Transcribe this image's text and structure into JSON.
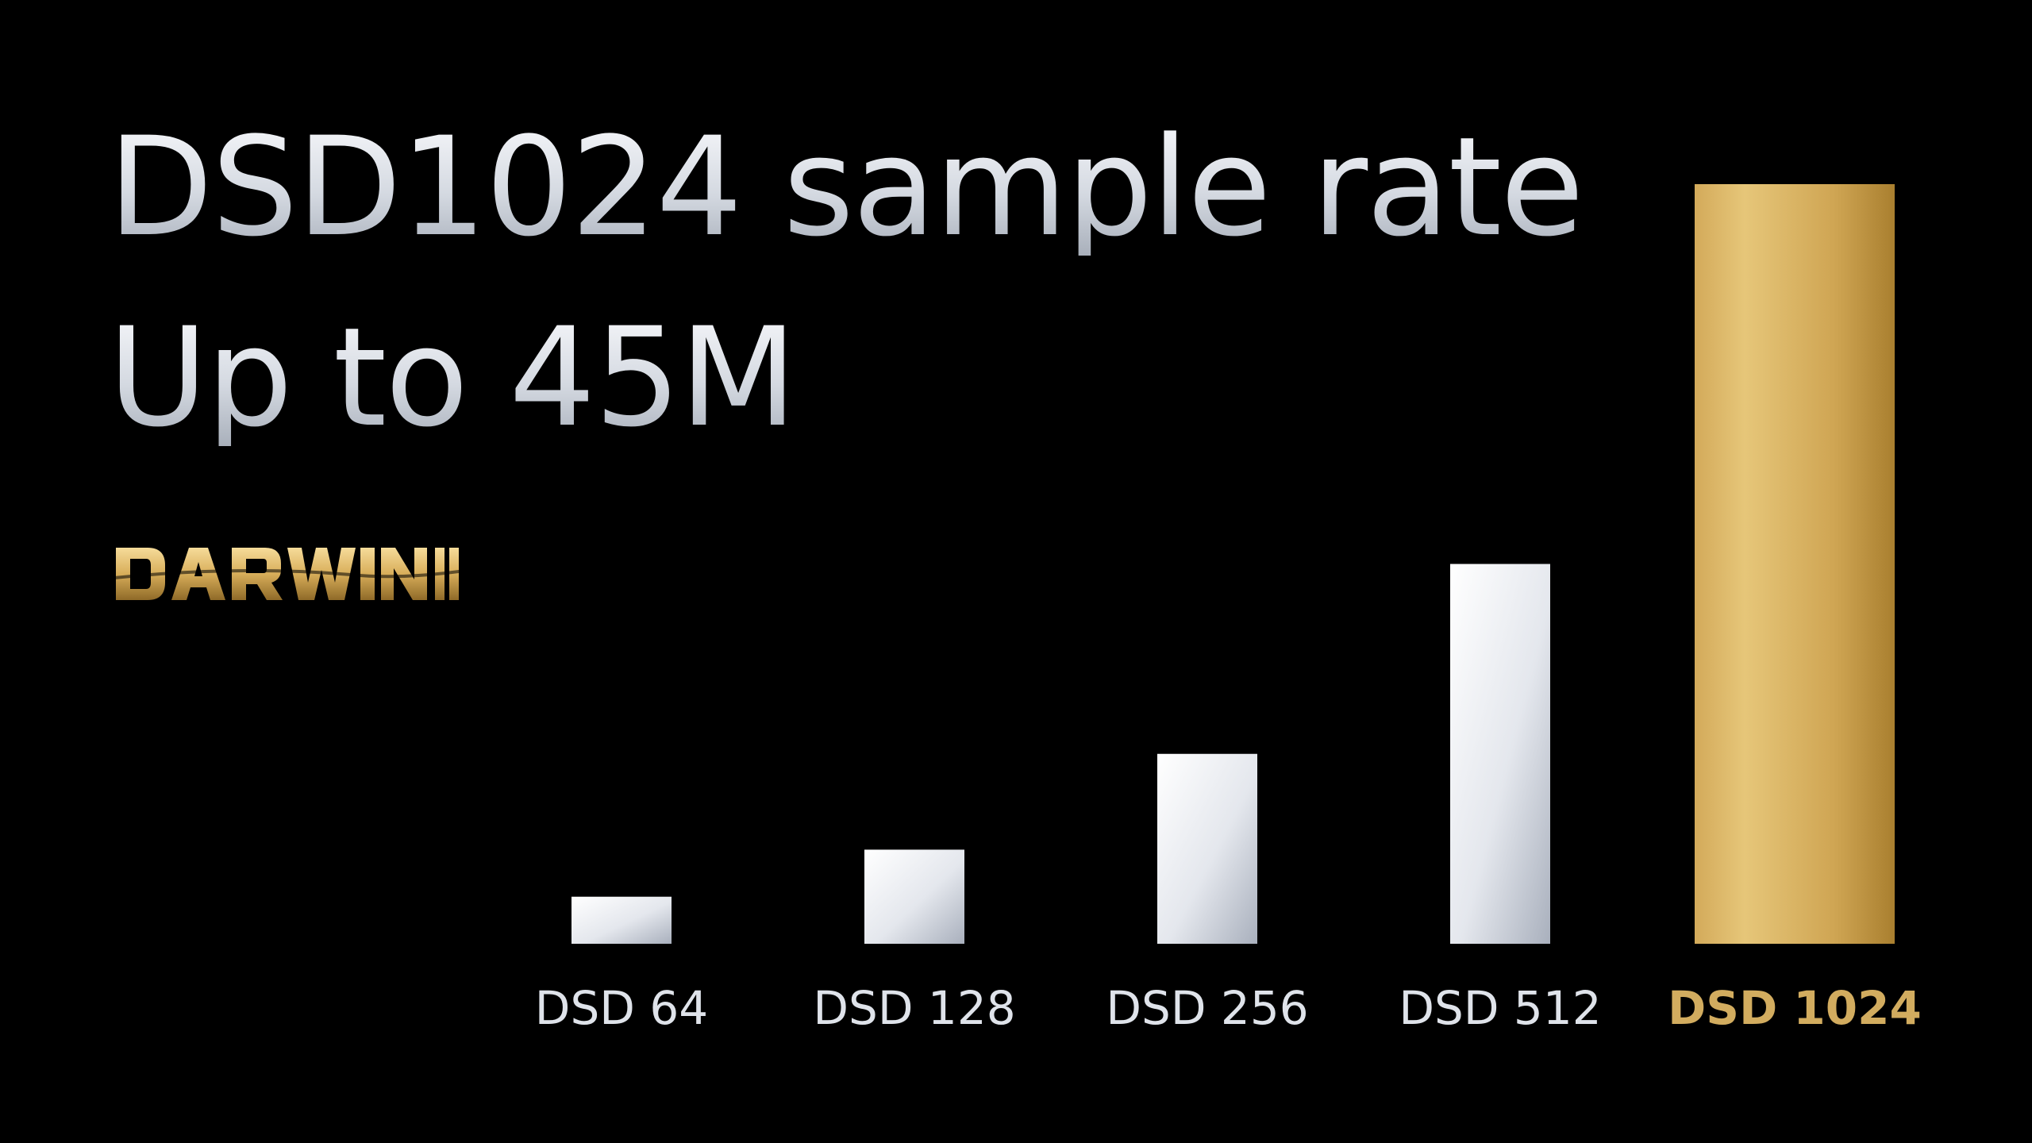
{
  "headline": {
    "line1": "DSD1024 sample rate",
    "line2": "Up to 45M"
  },
  "brand": {
    "logo_text": "DARWIN II"
  },
  "colors": {
    "background": "#000000",
    "silver": "#dfe3ea",
    "gold": "#c9a24e",
    "gold_label": "#d2ac5f"
  },
  "chart_data": {
    "type": "bar",
    "categories": [
      "DSD 64",
      "DSD 128",
      "DSD 256",
      "DSD 512",
      "DSD 1024"
    ],
    "values": [
      2.8,
      5.6,
      11.3,
      22.6,
      45.2
    ],
    "highlight": "DSD 1024",
    "title": "",
    "xlabel": "",
    "ylabel": "",
    "ylim": [
      0,
      45.2
    ],
    "grid": false,
    "legend": "none"
  }
}
